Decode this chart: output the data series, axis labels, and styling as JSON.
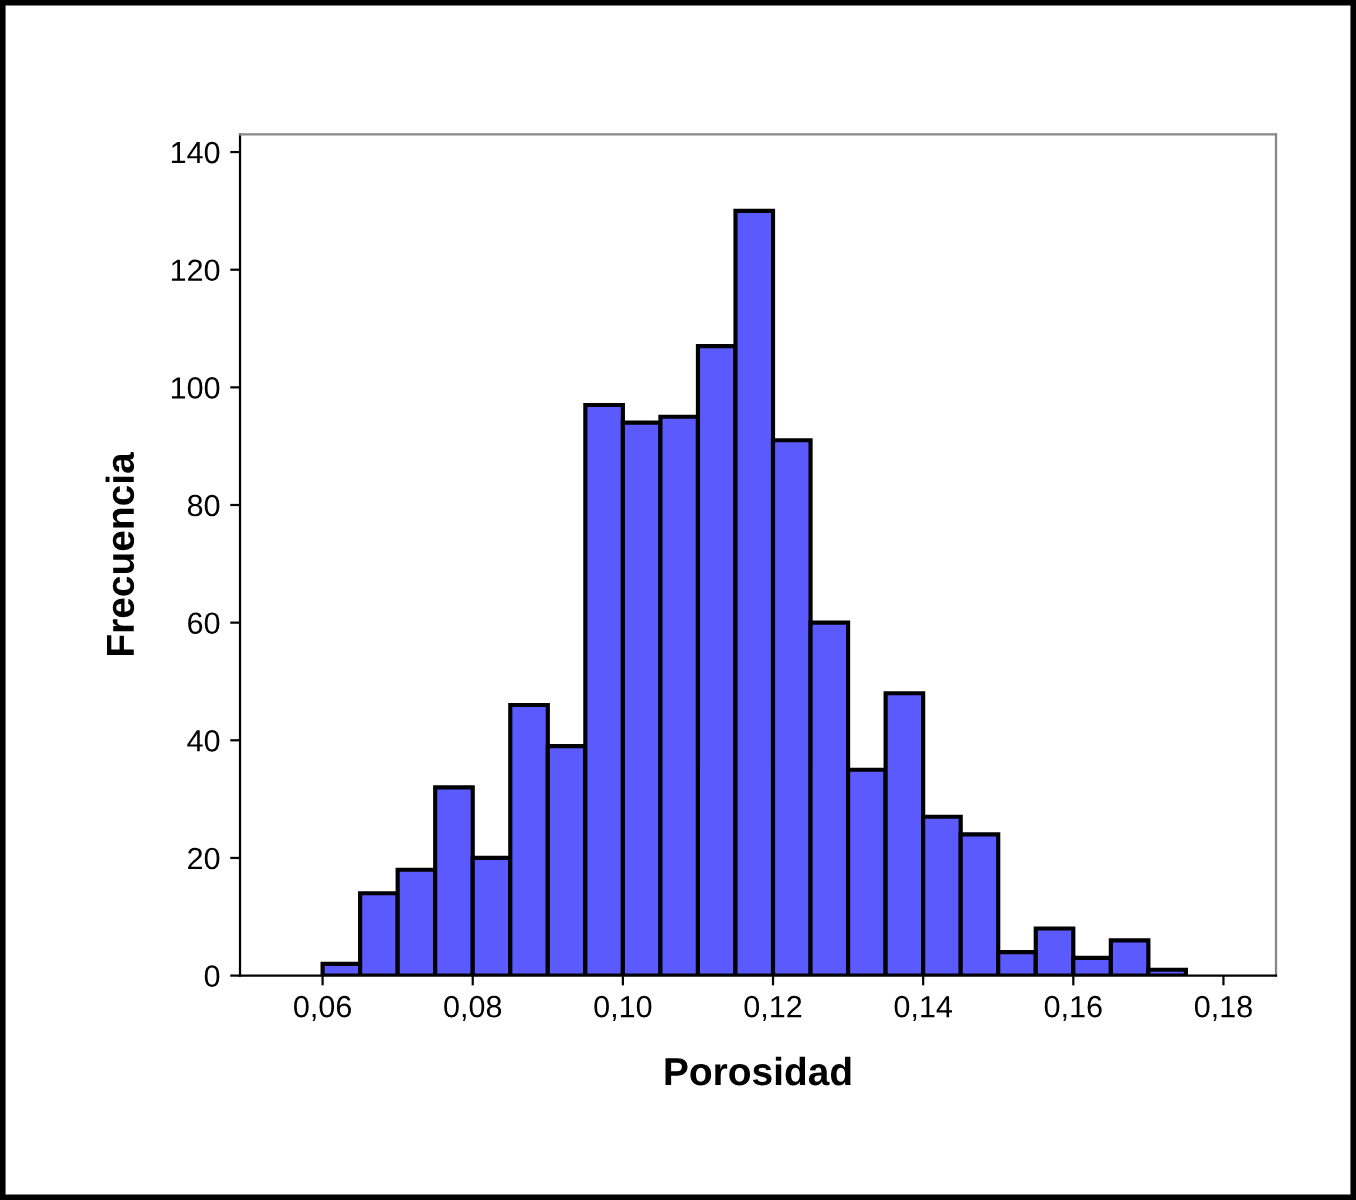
{
  "chart_data": {
    "type": "histogram",
    "xlabel": "Porosidad",
    "ylabel": "Frecuencia",
    "bins": [
      0.06,
      0.065,
      0.07,
      0.075,
      0.08,
      0.085,
      0.09,
      0.095,
      0.1,
      0.105,
      0.11,
      0.115,
      0.12,
      0.125,
      0.13,
      0.135,
      0.14,
      0.145,
      0.15,
      0.155,
      0.16,
      0.165,
      0.17,
      0.175,
      0.18
    ],
    "values": [
      2,
      14,
      18,
      32,
      20,
      46,
      39,
      97,
      94,
      95,
      107,
      130,
      91,
      60,
      35,
      48,
      27,
      24,
      4,
      8,
      3,
      6,
      1,
      0
    ],
    "color": "#5a5aff",
    "xlim": [
      0.049,
      0.187
    ],
    "ylim": [
      0,
      143
    ],
    "xticks": [
      {
        "value": 0.06,
        "label": "0,06"
      },
      {
        "value": 0.08,
        "label": "0,08"
      },
      {
        "value": 0.1,
        "label": "0,10"
      },
      {
        "value": 0.12,
        "label": "0,12"
      },
      {
        "value": 0.14,
        "label": "0,14"
      },
      {
        "value": 0.16,
        "label": "0,16"
      },
      {
        "value": 0.18,
        "label": "0,18"
      }
    ],
    "yticks": [
      0,
      20,
      40,
      60,
      80,
      100,
      120,
      140
    ],
    "grid": false,
    "legend": false
  }
}
